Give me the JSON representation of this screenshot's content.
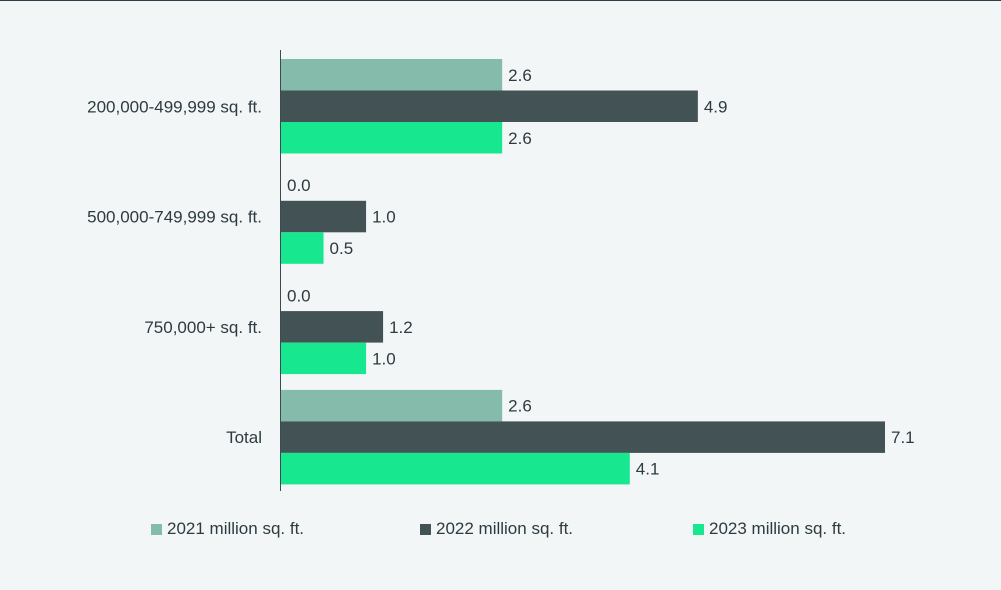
{
  "chart_data": {
    "type": "bar",
    "orientation": "horizontal",
    "categories": [
      "200,000-499,999 sq. ft.",
      "500,000-749,999 sq. ft.",
      "750,000+ sq. ft.",
      "Total"
    ],
    "series": [
      {
        "name": "2021 million sq. ft.",
        "color": "#84bbaa",
        "values": [
          2.6,
          0.0,
          0.0,
          2.6
        ],
        "labels": [
          "2.6",
          "0.0",
          "0.0",
          "2.6"
        ]
      },
      {
        "name": "2022 million sq. ft.",
        "color": "#435254",
        "values": [
          4.9,
          1.0,
          1.2,
          7.1
        ],
        "labels": [
          "4.9",
          "1.0",
          "1.2",
          "7.1"
        ]
      },
      {
        "name": "2023 million sq. ft.",
        "color": "#17e88f",
        "values": [
          2.6,
          0.5,
          1.0,
          4.1
        ],
        "labels": [
          "2.6",
          "0.5",
          "1.0",
          "4.1"
        ]
      }
    ],
    "title": "",
    "xlabel": "",
    "ylabel": "",
    "xlim": [
      0,
      7.1
    ],
    "grid": false,
    "legend": "bottom"
  }
}
